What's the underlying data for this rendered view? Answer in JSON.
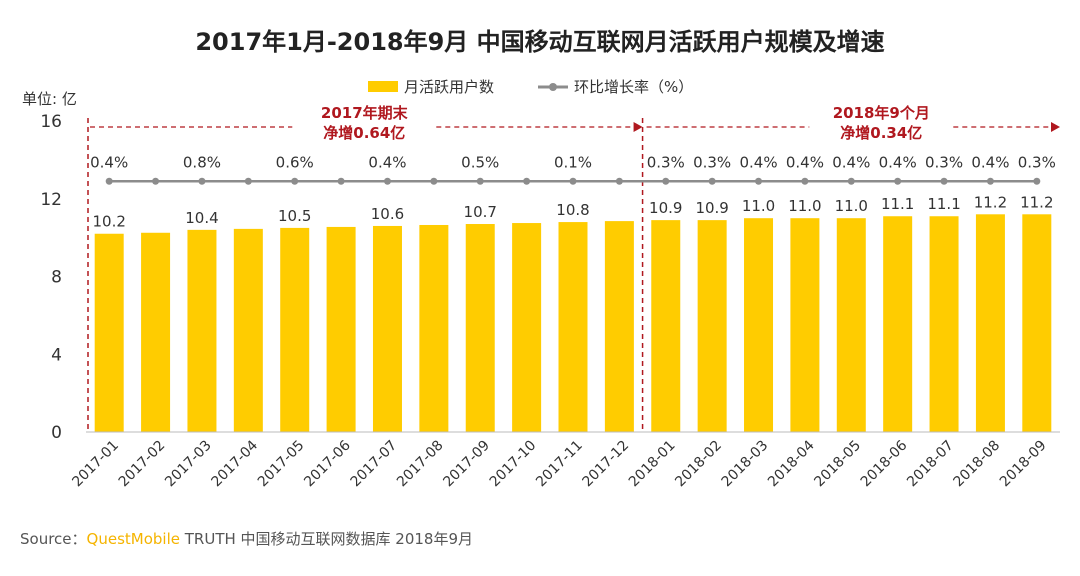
{
  "chart_data": {
    "type": "bar",
    "title": "2017年1月-2018年9月 中国移动互联网月活跃用户规模及增速",
    "unit_label": "单位: 亿",
    "categories": [
      "2017-01",
      "2017-02",
      "2017-03",
      "2017-04",
      "2017-05",
      "2017-06",
      "2017-07",
      "2017-08",
      "2017-09",
      "2017-10",
      "2017-11",
      "2017-12",
      "2018-01",
      "2018-02",
      "2018-03",
      "2018-04",
      "2018-05",
      "2018-06",
      "2018-07",
      "2018-08",
      "2018-09"
    ],
    "series": [
      {
        "name": "月活跃用户数",
        "type": "bar",
        "color": "#ffcc00",
        "values": [
          10.2,
          10.25,
          10.4,
          10.45,
          10.5,
          10.55,
          10.6,
          10.65,
          10.7,
          10.75,
          10.8,
          10.85,
          10.9,
          10.9,
          11.0,
          11.0,
          11.0,
          11.1,
          11.1,
          11.2,
          11.2
        ],
        "labels": [
          "10.2",
          "",
          "10.4",
          "",
          "10.5",
          "",
          "10.6",
          "",
          "10.7",
          "",
          "10.8",
          "",
          "10.9",
          "10.9",
          "11.0",
          "11.0",
          "11.0",
          "11.1",
          "11.1",
          "11.2",
          "11.2"
        ]
      },
      {
        "name": "环比增长率（%）",
        "type": "line",
        "color": "#8c8c8c",
        "values": [
          0.4,
          null,
          0.8,
          null,
          0.6,
          null,
          0.4,
          null,
          0.5,
          null,
          0.1,
          null,
          0.3,
          0.3,
          0.4,
          0.4,
          0.4,
          0.4,
          0.3,
          0.4,
          0.3
        ],
        "labels": [
          "0.4%",
          "",
          "0.8%",
          "",
          "0.6%",
          "",
          "0.4%",
          "",
          "0.5%",
          "",
          "0.1%",
          "",
          "0.3%",
          "0.3%",
          "0.4%",
          "0.4%",
          "0.4%",
          "0.4%",
          "0.3%",
          "0.4%",
          "0.3%"
        ]
      }
    ],
    "yticks": [
      0,
      4,
      8,
      12,
      16
    ],
    "ylim": [
      0,
      16
    ],
    "grid": false,
    "legend": "top-center",
    "annotations": [
      {
        "lines": [
          "2017年期末",
          "净增0.64亿"
        ],
        "span": [
          "2017-01",
          "2017-12"
        ]
      },
      {
        "lines": [
          "2018年9个月",
          "净增0.34亿"
        ],
        "span": [
          "2018-01",
          "2018-09"
        ]
      }
    ],
    "divider_after": "2017-12"
  },
  "source": {
    "prefix": "Source：",
    "brand": "QuestMobile",
    "text": " TRUTH 中国移动互联网数据库 2018年9月"
  },
  "colors": {
    "accent": "#ffcc00",
    "line": "#8c8c8c",
    "annotation": "#b0181f"
  }
}
